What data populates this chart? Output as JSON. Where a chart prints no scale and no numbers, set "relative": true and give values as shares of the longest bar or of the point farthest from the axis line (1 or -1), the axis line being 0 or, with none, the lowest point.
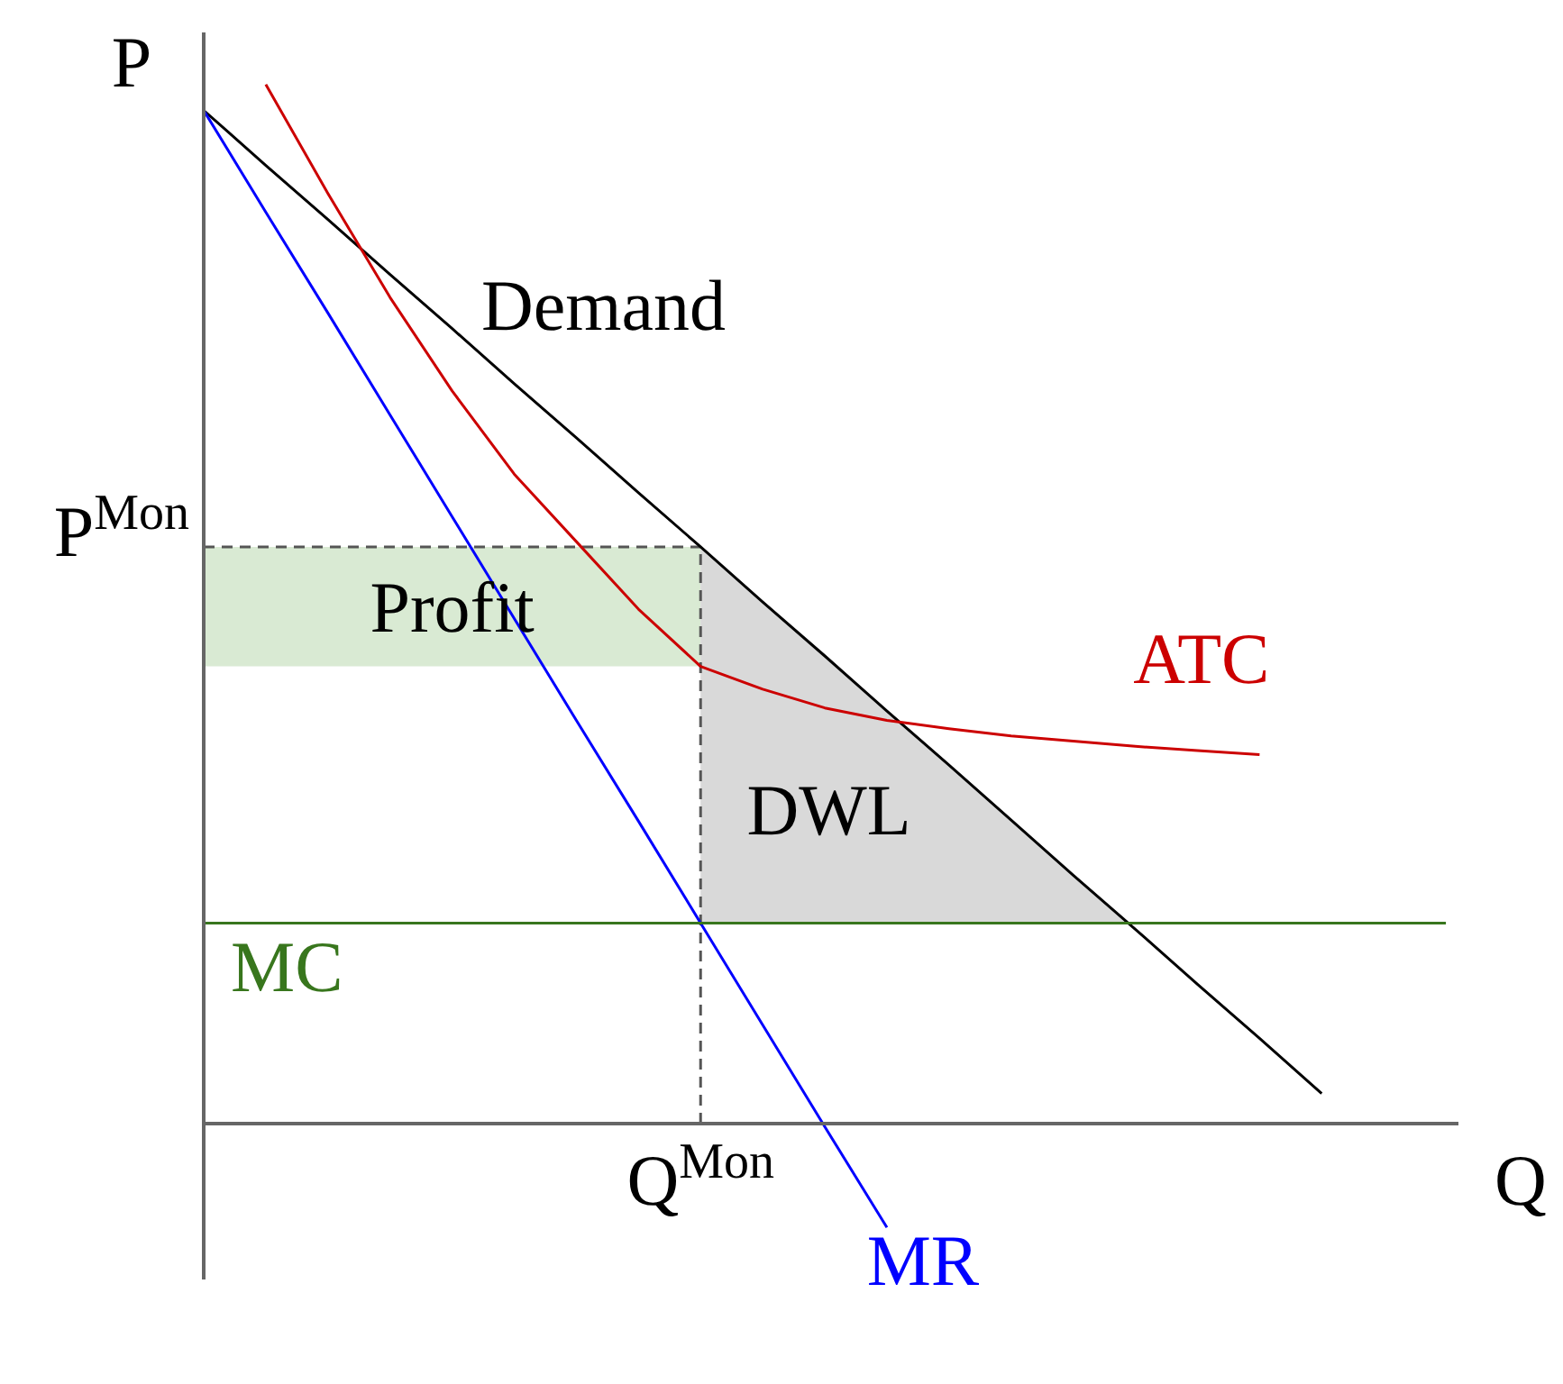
{
  "chart_data": {
    "type": "line",
    "relative": true,
    "ylabel": "P",
    "xlabel": "Q",
    "marker": "none",
    "categories": [
      null,
      null,
      null,
      null,
      null,
      null,
      null,
      null,
      null,
      null,
      null,
      null,
      null,
      null,
      null,
      null,
      null,
      null,
      null,
      null,
      null
    ],
    "series": [
      {
        "name": "Demand",
        "color": "#000000",
        "values": [
          0.975,
          0.922,
          0.87,
          0.817,
          0.765,
          0.712,
          0.66,
          0.607,
          0.555,
          0.502,
          0.45,
          0.397,
          0.345,
          0.292,
          0.239,
          0.187,
          0.134,
          0.082,
          0.029,
          null,
          null
        ]
      },
      {
        "name": "MR",
        "color": "#0000ff",
        "values": [
          0.975,
          0.877,
          0.78,
          0.682,
          0.584,
          0.486,
          0.388,
          0.291,
          0.193,
          0.095,
          -0.003,
          -0.1,
          null,
          null,
          null,
          null,
          null,
          null,
          null,
          null,
          null
        ]
      },
      {
        "name": "MC",
        "color": "#38761d",
        "values": [
          0.193,
          0.193,
          0.193,
          0.193,
          0.193,
          0.193,
          0.193,
          0.193,
          0.193,
          0.193,
          0.193,
          0.193,
          0.193,
          0.193,
          0.193,
          0.193,
          0.193,
          0.193,
          0.193,
          0.193,
          0.193
        ]
      },
      {
        "name": "ATC",
        "color": "#cc0000",
        "values": [
          null,
          1.0,
          0.895,
          0.795,
          0.705,
          0.625,
          0.56,
          0.495,
          0.44,
          0.418,
          0.4,
          0.388,
          0.38,
          0.373,
          0.368,
          0.363,
          0.359,
          0.355,
          null,
          null,
          null
        ]
      }
    ],
    "ref_lines": [
      {
        "axis": "y",
        "value": 0.555,
        "label": "P$^{Mon}$",
        "line_style": "dashed",
        "color": "#555555"
      }
    ],
    "annotations": [
      "Profit",
      "DWL",
      "Q$^{Mon}$"
    ]
  }
}
